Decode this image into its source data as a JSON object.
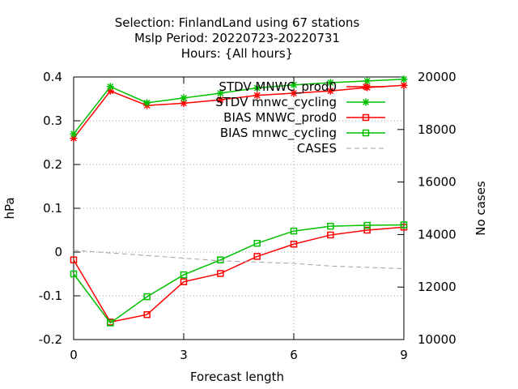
{
  "chart_data": {
    "type": "line",
    "title_lines": [
      "Selection: FinlandLand using    67 stations",
      "Mslp   Period: 20220723-20220731",
      "Hours: {All hours}"
    ],
    "xlabel": "Forecast length",
    "ylabel": "hPa",
    "y2label": "No cases",
    "x": [
      0,
      1,
      2,
      3,
      4,
      5,
      6,
      7,
      8,
      9
    ],
    "xlim": [
      0,
      9
    ],
    "xticks": [
      0,
      3,
      6,
      9
    ],
    "ylim": [
      -0.2,
      0.4
    ],
    "yticks": [
      -0.2,
      -0.1,
      0,
      0.1,
      0.2,
      0.3,
      0.4
    ],
    "ytick_labels": [
      "-0.2",
      "-0.1",
      "0",
      "0.1",
      "0.2",
      "0.3",
      "0.4"
    ],
    "y2lim": [
      10000,
      20000
    ],
    "y2ticks": [
      10000,
      12000,
      14000,
      16000,
      18000,
      20000
    ],
    "grid": true,
    "legend_position": "top-right",
    "series": [
      {
        "name": "STDV MNWC_prod0",
        "axis": "y",
        "marker": "star",
        "color": "#ff0000",
        "values": [
          0.26,
          0.368,
          0.335,
          0.34,
          0.348,
          0.358,
          0.363,
          0.368,
          0.376,
          0.381
        ]
      },
      {
        "name": "STDV mnwc_cycling",
        "axis": "y",
        "marker": "star",
        "color": "#00c000",
        "values": [
          0.27,
          0.378,
          0.341,
          0.352,
          0.363,
          0.375,
          0.382,
          0.387,
          0.391,
          0.395
        ]
      },
      {
        "name": "BIAS MNWC_prod0",
        "axis": "y",
        "marker": "square",
        "color": "#ff0000",
        "values": [
          -0.018,
          -0.16,
          -0.143,
          -0.068,
          -0.049,
          -0.01,
          0.018,
          0.039,
          0.05,
          0.057
        ]
      },
      {
        "name": "BIAS mnwc_cycling",
        "axis": "y",
        "marker": "square",
        "color": "#00c000",
        "values": [
          -0.05,
          -0.162,
          -0.102,
          -0.052,
          -0.018,
          0.02,
          0.048,
          0.059,
          0.061,
          0.062
        ]
      },
      {
        "name": "CASES",
        "axis": "y2",
        "marker": "none",
        "color": "#a0a0a0",
        "dashed": true,
        "values": [
          13400,
          13300,
          13200,
          13100,
          13000,
          12950,
          12900,
          12800,
          12750,
          12700
        ]
      }
    ]
  }
}
